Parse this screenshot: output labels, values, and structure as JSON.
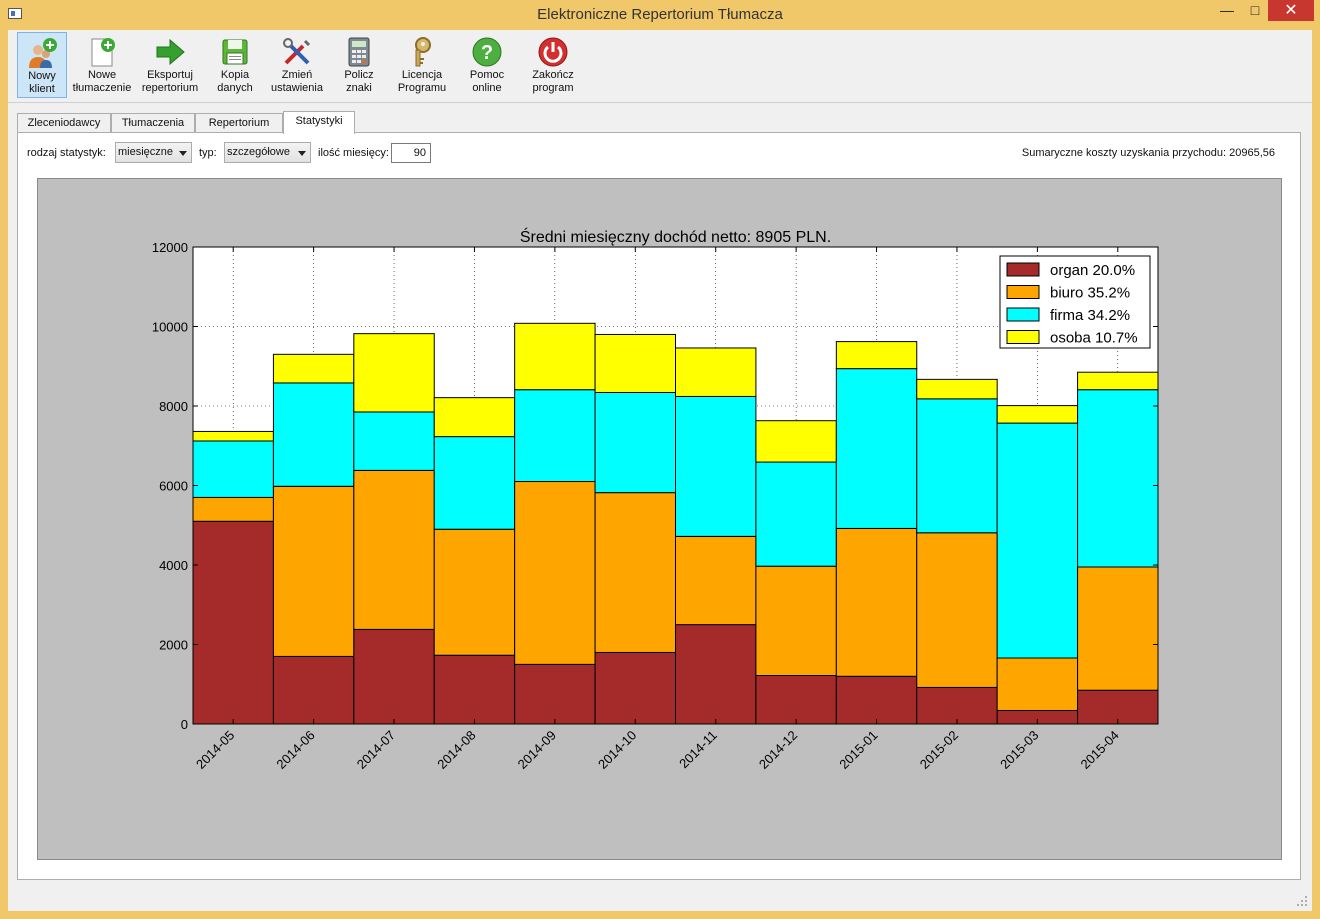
{
  "window": {
    "title": "Elektroniczne Repertorium Tłumacza"
  },
  "toolbar": {
    "items": [
      {
        "name": "new-client",
        "l1": "Nowy",
        "l2": "klient",
        "icon": "new-client-icon"
      },
      {
        "name": "new-translation",
        "l1": "Nowe",
        "l2": "tłumaczenie",
        "icon": "new-document-icon"
      },
      {
        "name": "export",
        "l1": "Eksportuj",
        "l2": "repertorium",
        "icon": "export-arrow-icon"
      },
      {
        "name": "backup",
        "l1": "Kopia",
        "l2": "danych",
        "icon": "floppy-disk-icon"
      },
      {
        "name": "settings",
        "l1": "Zmień",
        "l2": "ustawienia",
        "icon": "tools-icon"
      },
      {
        "name": "count-chars",
        "l1": "Policz",
        "l2": "znaki",
        "icon": "calculator-icon"
      },
      {
        "name": "license",
        "l1": "Licencja",
        "l2": "Programu",
        "icon": "key-icon"
      },
      {
        "name": "help",
        "l1": "Pomoc",
        "l2": "online",
        "icon": "help-icon"
      },
      {
        "name": "exit",
        "l1": "Zakończ",
        "l2": "program",
        "icon": "power-icon"
      }
    ]
  },
  "tabs": [
    {
      "label": "Zleceniodawcy"
    },
    {
      "label": "Tłumaczenia"
    },
    {
      "label": "Repertorium"
    },
    {
      "label": "Statystyki",
      "active": true
    }
  ],
  "filters": {
    "stat_type_label": "rodzaj statystyk:",
    "stat_type_value": "miesięczne",
    "type_label": "typ:",
    "type_value": "szczegółowe",
    "months_label": "ilość miesięcy:",
    "months_value": "90",
    "summary": "Sumaryczne koszty uzyskania przychodu: 20965,56"
  },
  "colors": {
    "organ": "#a52a2a",
    "biuro": "#ffa500",
    "firma": "#00ffff",
    "osoba": "#ffff00",
    "plot_bg": "#bfbfbf"
  },
  "chart_data": {
    "type": "bar",
    "stacked": true,
    "title": "Średni miesięczny dochód netto: 8905 PLN.",
    "categories": [
      "2014-05",
      "2014-06",
      "2014-07",
      "2014-08",
      "2014-09",
      "2014-10",
      "2014-11",
      "2014-12",
      "2015-01",
      "2015-02",
      "2015-03",
      "2015-04"
    ],
    "series": [
      {
        "name": "organ 20.0%",
        "values": [
          5100,
          1700,
          2380,
          1730,
          1500,
          1800,
          2500,
          1220,
          1200,
          920,
          340,
          850
        ]
      },
      {
        "name": "biuro 35.2%",
        "values": [
          600,
          4280,
          4000,
          3170,
          4600,
          4020,
          2220,
          2750,
          3720,
          3890,
          1320,
          3100
        ]
      },
      {
        "name": "firma 34.2%",
        "values": [
          1420,
          2600,
          1470,
          2330,
          2310,
          2520,
          3520,
          2620,
          4020,
          3370,
          5910,
          4460
        ]
      },
      {
        "name": "osoba 10.7%",
        "values": [
          240,
          720,
          1970,
          980,
          1670,
          1460,
          1220,
          1040,
          680,
          490,
          440,
          440
        ]
      }
    ],
    "ylim": [
      0,
      12000
    ],
    "yticks": [
      0,
      2000,
      4000,
      6000,
      8000,
      10000,
      12000
    ],
    "grid": true,
    "legend": "top-right"
  }
}
